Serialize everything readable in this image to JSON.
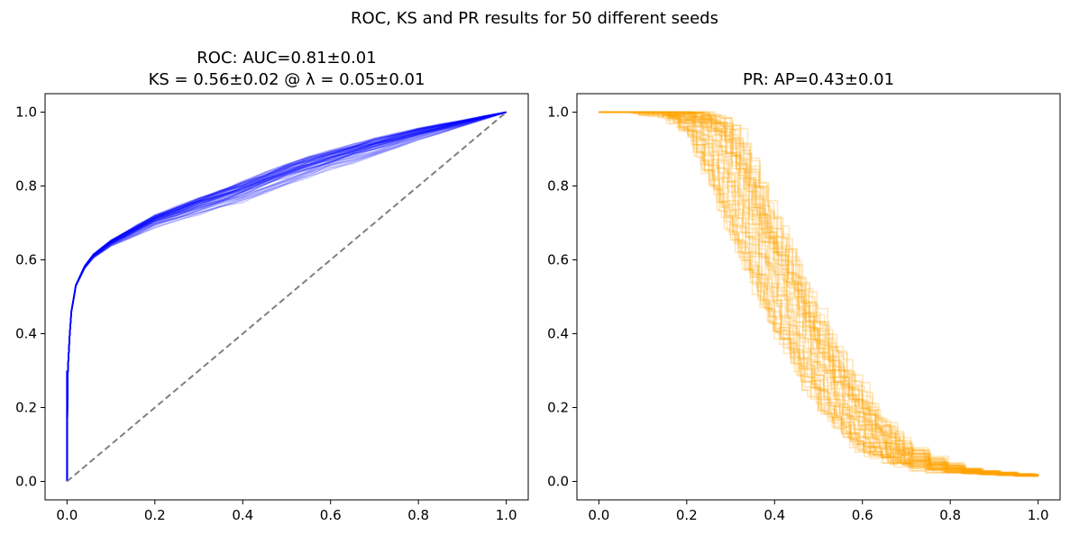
{
  "figure": {
    "suptitle": "ROC, KS and PR results for 50 different seeds",
    "seed_count": 50
  },
  "chart_data": [
    {
      "type": "line",
      "title_line1": "ROC: AUC=0.81±0.01",
      "title_line2": "KS = 0.56±0.02 @ λ = 0.05±0.01",
      "xlabel": "",
      "ylabel": "",
      "xlim": [
        -0.05,
        1.05
      ],
      "ylim": [
        -0.05,
        1.05
      ],
      "xticks": [
        0.0,
        0.2,
        0.4,
        0.6,
        0.8,
        1.0
      ],
      "xtick_labels": [
        "0.0",
        "0.2",
        "0.4",
        "0.6",
        "0.8",
        "1.0"
      ],
      "yticks": [
        0.0,
        0.2,
        0.4,
        0.6,
        0.8,
        1.0
      ],
      "ytick_labels": [
        "0.0",
        "0.2",
        "0.4",
        "0.6",
        "0.8",
        "1.0"
      ],
      "grid": false,
      "series_color": "#0000ff",
      "series_alpha": 0.2,
      "base_curve": [
        [
          0.0,
          0.0
        ],
        [
          0.0,
          0.25
        ],
        [
          0.005,
          0.38
        ],
        [
          0.01,
          0.46
        ],
        [
          0.02,
          0.53
        ],
        [
          0.04,
          0.58
        ],
        [
          0.06,
          0.61
        ],
        [
          0.1,
          0.645
        ],
        [
          0.15,
          0.675
        ],
        [
          0.2,
          0.705
        ],
        [
          0.3,
          0.745
        ],
        [
          0.4,
          0.785
        ],
        [
          0.5,
          0.83
        ],
        [
          0.6,
          0.87
        ],
        [
          0.7,
          0.905
        ],
        [
          0.8,
          0.94
        ],
        [
          0.9,
          0.97
        ],
        [
          1.0,
          1.0
        ]
      ],
      "spread": 0.03,
      "reference_line": {
        "x": [
          0,
          1
        ],
        "y": [
          0,
          1
        ],
        "color": "#808080",
        "style": "dashed"
      }
    },
    {
      "type": "line",
      "title": "PR: AP=0.43±0.01",
      "xlabel": "",
      "ylabel": "",
      "xlim": [
        -0.05,
        1.05
      ],
      "ylim": [
        -0.05,
        1.05
      ],
      "xticks": [
        0.0,
        0.2,
        0.4,
        0.6,
        0.8,
        1.0
      ],
      "xtick_labels": [
        "0.0",
        "0.2",
        "0.4",
        "0.6",
        "0.8",
        "1.0"
      ],
      "yticks": [
        0.0,
        0.2,
        0.4,
        0.6,
        0.8,
        1.0
      ],
      "ytick_labels": [
        "0.0",
        "0.2",
        "0.4",
        "0.6",
        "0.8",
        "1.0"
      ],
      "grid": false,
      "series_color": "#ffa500",
      "series_alpha": 0.25,
      "base_curve": [
        [
          0.0,
          1.0
        ],
        [
          0.15,
          1.0
        ],
        [
          0.2,
          0.99
        ],
        [
          0.25,
          0.95
        ],
        [
          0.3,
          0.83
        ],
        [
          0.35,
          0.68
        ],
        [
          0.4,
          0.55
        ],
        [
          0.45,
          0.42
        ],
        [
          0.5,
          0.31
        ],
        [
          0.55,
          0.22
        ],
        [
          0.6,
          0.14
        ],
        [
          0.65,
          0.09
        ],
        [
          0.7,
          0.06
        ],
        [
          0.75,
          0.04
        ],
        [
          0.8,
          0.03
        ],
        [
          0.9,
          0.02
        ],
        [
          1.0,
          0.015
        ]
      ],
      "spread": 0.06
    }
  ]
}
